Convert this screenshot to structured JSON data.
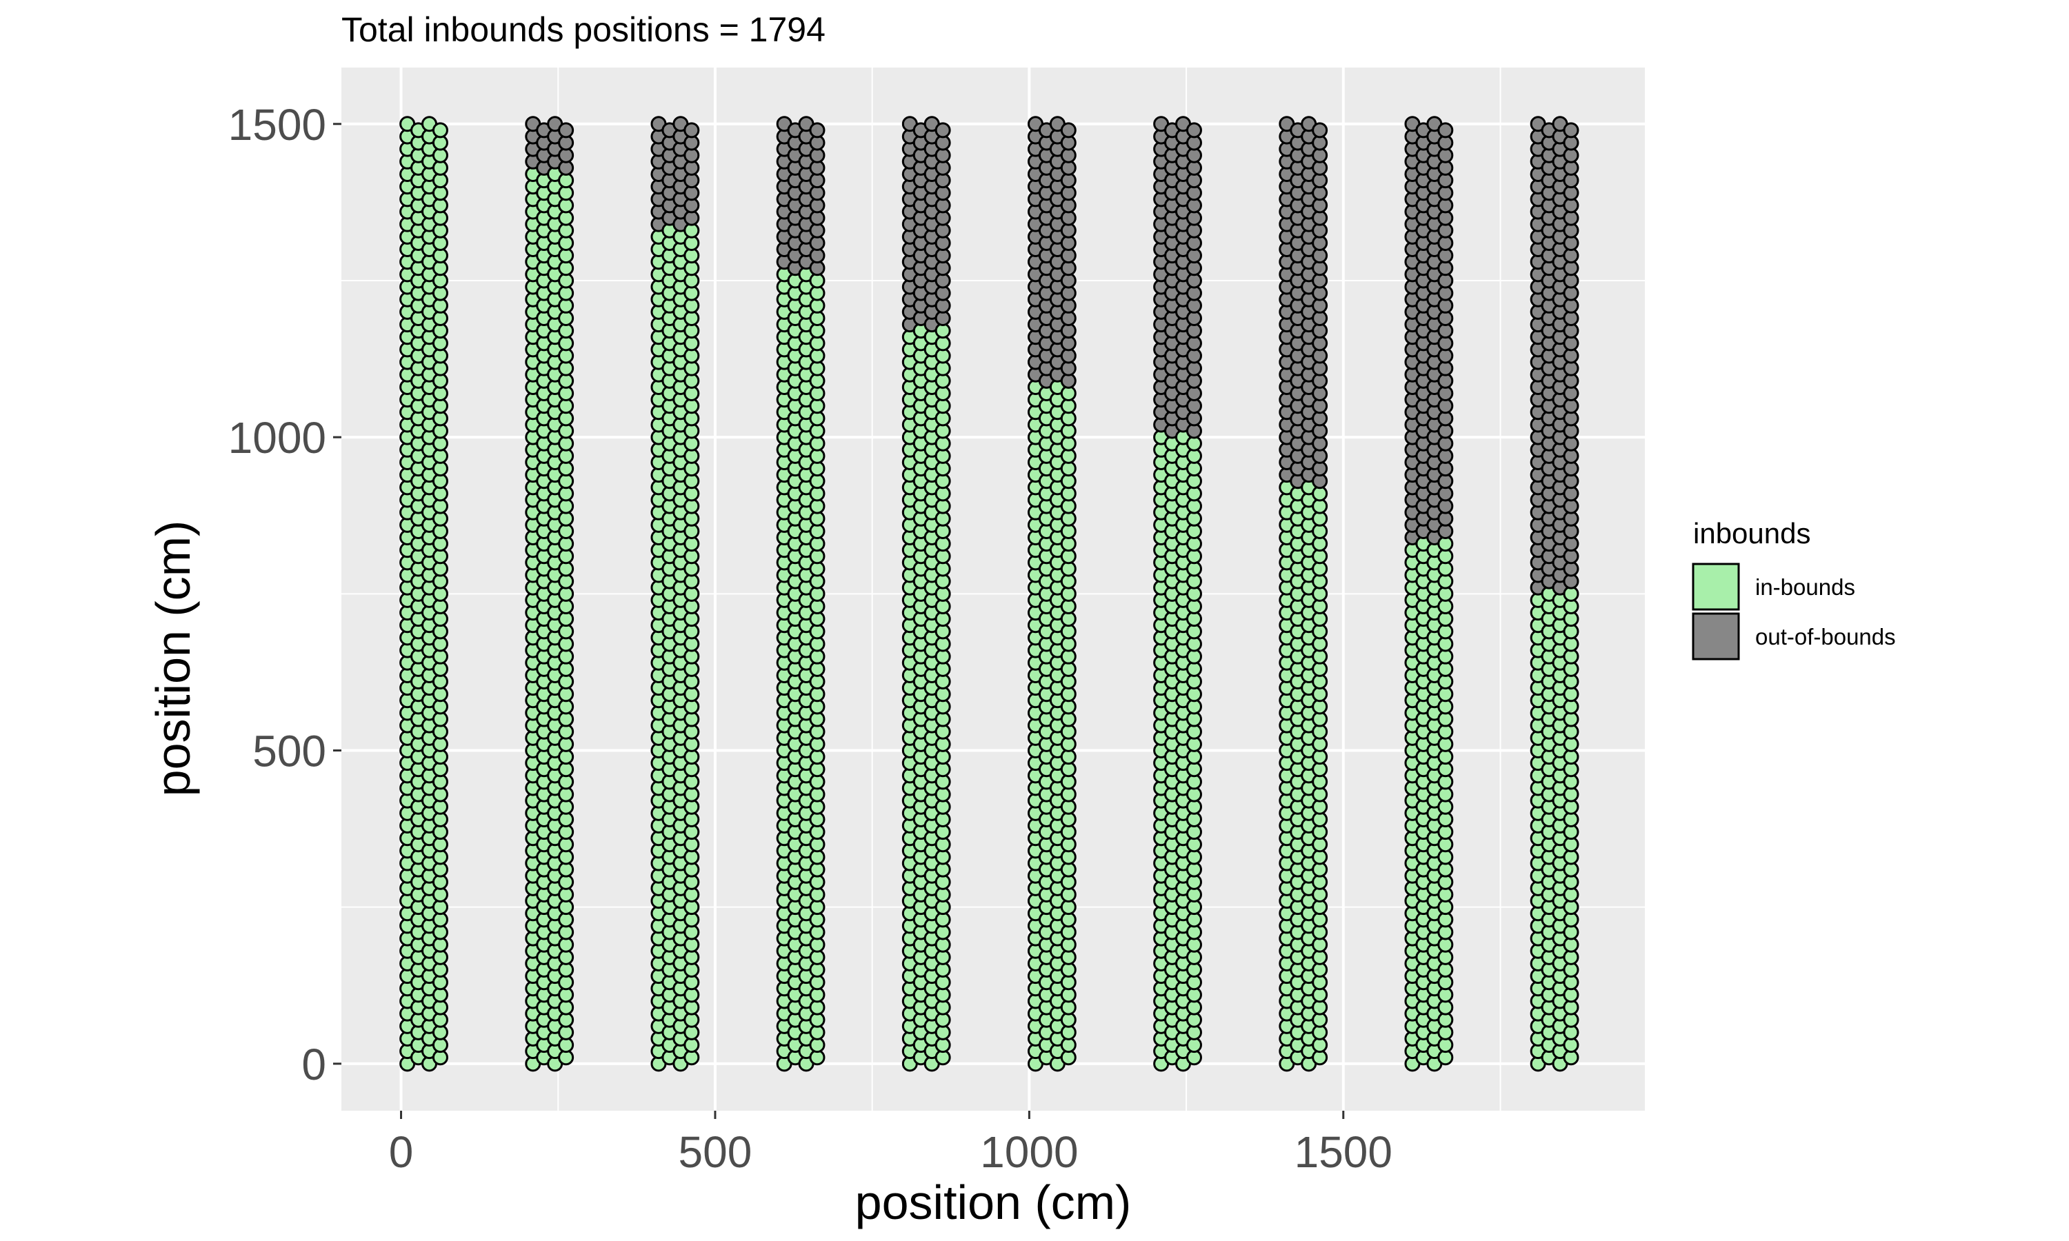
{
  "chart_data": {
    "type": "scatter",
    "title": "Total inbounds positions = 1794",
    "xlabel": "position (cm)",
    "ylabel": "position (cm)",
    "xlim": [
      -95,
      1980
    ],
    "ylim": [
      -75,
      1590
    ],
    "x_ticks": [
      0,
      500,
      1000,
      1500
    ],
    "y_ticks": [
      0,
      500,
      1000,
      1500
    ],
    "x_minor_ticks": [
      250,
      750,
      1250,
      1750
    ],
    "y_minor_ticks": [
      250,
      750,
      1250
    ],
    "grid": true,
    "legend": {
      "title": "inbounds",
      "position": "right",
      "entries": [
        {
          "label": "in-bounds",
          "color": "#a8efaa"
        },
        {
          "label": "out-of-bounds",
          "color": "#878787"
        }
      ]
    },
    "colors": {
      "in_bounds": "#a8efaa",
      "out_of_bounds": "#878787",
      "point_stroke": "#000000",
      "panel_background": "#ebebeb",
      "grid": "#ffffff"
    },
    "point_grid": {
      "description": "Each column group is a hexagonal lattice of points; points at or below the boundary y are in-bounds.",
      "row_spacing_y": 20,
      "col_spacing_x": 17.5,
      "y_min": 0,
      "y_max": 1500
    },
    "columns": [
      {
        "x_start": 10,
        "n_cols": 4,
        "boundary_y": 1500
      },
      {
        "x_start": 210,
        "n_cols": 4,
        "boundary_y": 1420
      },
      {
        "x_start": 410,
        "n_cols": 4,
        "boundary_y": 1330
      },
      {
        "x_start": 610,
        "n_cols": 4,
        "boundary_y": 1260
      },
      {
        "x_start": 810,
        "n_cols": 4,
        "boundary_y": 1170
      },
      {
        "x_start": 1010,
        "n_cols": 4,
        "boundary_y": 1085
      },
      {
        "x_start": 1210,
        "n_cols": 4,
        "boundary_y": 1005
      },
      {
        "x_start": 1410,
        "n_cols": 4,
        "boundary_y": 920
      },
      {
        "x_start": 1610,
        "n_cols": 4,
        "boundary_y": 835
      },
      {
        "x_start": 1810,
        "n_cols": 4,
        "boundary_y": 755
      }
    ]
  }
}
